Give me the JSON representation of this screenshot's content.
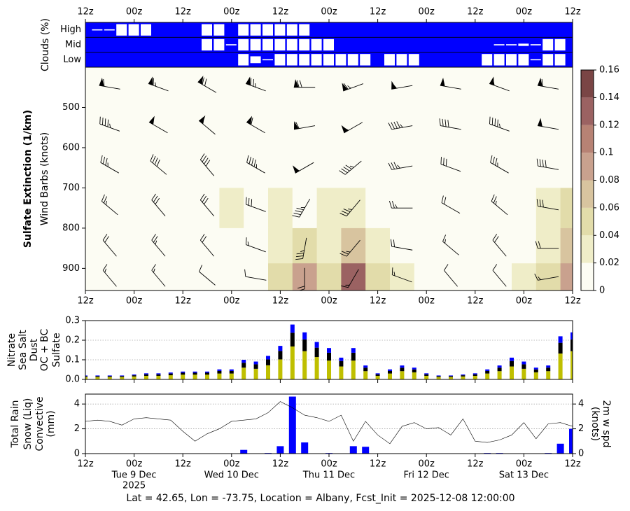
{
  "time_axis": {
    "xlim": [
      0,
      120
    ],
    "xticks": [
      {
        "value": 0,
        "label": "12z"
      },
      {
        "value": 12,
        "label": "00z"
      },
      {
        "value": 24,
        "label": "12z"
      },
      {
        "value": 36,
        "label": "00z"
      },
      {
        "value": 48,
        "label": "12z"
      },
      {
        "value": 60,
        "label": "00z"
      },
      {
        "value": 72,
        "label": "12z"
      },
      {
        "value": 84,
        "label": "00z"
      },
      {
        "value": 96,
        "label": "12z"
      },
      {
        "value": 108,
        "label": "00z"
      },
      {
        "value": 120,
        "label": "12z"
      }
    ],
    "date_labels": [
      {
        "value": 12,
        "label": "Tue 9 Dec"
      },
      {
        "value": 36,
        "label": "Wed 10 Dec"
      },
      {
        "value": 60,
        "label": "Thu 11 Dec"
      },
      {
        "value": 84,
        "label": "Fri 12 Dec"
      },
      {
        "value": 108,
        "label": "Sat 13 Dec"
      }
    ],
    "year_label": {
      "value": 12,
      "label": "2025"
    }
  },
  "footer": "Lat = 42.65, Lon = -73.75, Location = Albany, Fcst_Init = 2025-12-08 12:00:00",
  "chart_data": [
    {
      "type": "cloud_cover",
      "ylabel": "Clouds (%)",
      "x": [
        0,
        3,
        6,
        9,
        12,
        15,
        18,
        21,
        24,
        27,
        30,
        33,
        36,
        39,
        42,
        45,
        48,
        51,
        54,
        57,
        60,
        63,
        66,
        69,
        72,
        75,
        78,
        81,
        84,
        87,
        90,
        93,
        96,
        99,
        102,
        105,
        108,
        111,
        114,
        117,
        120
      ],
      "rows": [
        {
          "name": "High",
          "values": [
            0,
            10,
            10,
            100,
            100,
            100,
            0,
            0,
            0,
            0,
            100,
            100,
            0,
            100,
            100,
            100,
            100,
            100,
            100,
            0,
            0,
            0,
            0,
            0,
            0,
            0,
            0,
            0,
            0,
            0,
            0,
            0,
            0,
            0,
            0,
            0,
            0,
            0,
            0,
            0,
            0
          ]
        },
        {
          "name": "Mid",
          "values": [
            0,
            0,
            0,
            0,
            0,
            0,
            0,
            0,
            0,
            0,
            100,
            100,
            10,
            100,
            100,
            100,
            100,
            100,
            100,
            100,
            100,
            0,
            0,
            0,
            0,
            0,
            0,
            0,
            0,
            0,
            0,
            0,
            0,
            0,
            10,
            10,
            20,
            10,
            100,
            100,
            0
          ]
        },
        {
          "name": "Low",
          "values": [
            0,
            0,
            0,
            0,
            0,
            0,
            0,
            0,
            0,
            0,
            0,
            0,
            0,
            100,
            60,
            10,
            100,
            100,
            100,
            100,
            100,
            100,
            100,
            100,
            0,
            100,
            100,
            100,
            0,
            0,
            0,
            0,
            0,
            100,
            100,
            100,
            100,
            10,
            100,
            100,
            0
          ]
        }
      ]
    },
    {
      "type": "contour_barbs",
      "ylabel": "Sulfate Extinction (1/km)",
      "ylabel2": "Wind Barbs (knots)",
      "ylim": [
        400,
        955
      ],
      "yticks": [
        500,
        600,
        700,
        800,
        900
      ],
      "extinction": {
        "x": [
          0,
          6,
          12,
          18,
          24,
          30,
          36,
          42,
          48,
          54,
          60,
          66,
          72,
          78,
          84,
          90,
          96,
          102,
          108,
          114,
          120
        ],
        "levels": [
          450,
          550,
          650,
          750,
          850,
          925
        ],
        "values": [
          [
            0.01,
            0.01,
            0.01,
            0.01,
            0.01,
            0.01,
            0.01,
            0.01,
            0.01,
            0.01,
            0.01,
            0.01,
            0.01,
            0.01,
            0.01,
            0.01,
            0.01,
            0.01,
            0.01,
            0.01,
            0.01
          ],
          [
            0.01,
            0.01,
            0.01,
            0.01,
            0.01,
            0.01,
            0.01,
            0.01,
            0.01,
            0.01,
            0.01,
            0.01,
            0.01,
            0.01,
            0.01,
            0.01,
            0.01,
            0.01,
            0.01,
            0.01,
            0.01
          ],
          [
            0.01,
            0.01,
            0.01,
            0.01,
            0.01,
            0.01,
            0.01,
            0.01,
            0.01,
            0.01,
            0.01,
            0.01,
            0.01,
            0.01,
            0.01,
            0.01,
            0.01,
            0.01,
            0.01,
            0.01,
            0.015
          ],
          [
            0.01,
            0.01,
            0.01,
            0.01,
            0.01,
            0.01,
            0.025,
            0.01,
            0.03,
            0.01,
            0.025,
            0.03,
            0.01,
            0.01,
            0.01,
            0.01,
            0.01,
            0.01,
            0.01,
            0.025,
            0.05
          ],
          [
            0.01,
            0.01,
            0.01,
            0.01,
            0.01,
            0.01,
            0.015,
            0.01,
            0.03,
            0.05,
            0.03,
            0.07,
            0.03,
            0.01,
            0.01,
            0.01,
            0.01,
            0.01,
            0.015,
            0.03,
            0.07
          ],
          [
            0.01,
            0.01,
            0.01,
            0.01,
            0.01,
            0.01,
            0.01,
            0.01,
            0.05,
            0.08,
            0.04,
            0.13,
            0.05,
            0.025,
            0.01,
            0.01,
            0.01,
            0.01,
            0.02,
            0.05,
            0.09
          ]
        ]
      },
      "winds": {
        "x": [
          6,
          18,
          30,
          42,
          54,
          66,
          78,
          90,
          102,
          114
        ],
        "levels": [
          450,
          550,
          650,
          750,
          850,
          925
        ],
        "direction": [
          [
            280,
            290,
            300,
            290,
            270,
            250,
            260,
            280,
            290,
            280
          ],
          [
            290,
            300,
            310,
            300,
            260,
            240,
            260,
            280,
            290,
            280
          ],
          [
            300,
            310,
            320,
            300,
            240,
            230,
            260,
            290,
            300,
            280
          ],
          [
            310,
            320,
            320,
            290,
            210,
            220,
            270,
            300,
            310,
            280
          ],
          [
            320,
            320,
            320,
            290,
            190,
            220,
            280,
            310,
            320,
            270
          ],
          [
            320,
            320,
            310,
            280,
            180,
            210,
            290,
            320,
            320,
            260
          ]
        ],
        "speed": [
          [
            60,
            65,
            70,
            75,
            70,
            65,
            55,
            50,
            55,
            60
          ],
          [
            45,
            50,
            55,
            60,
            60,
            55,
            45,
            40,
            45,
            50
          ],
          [
            35,
            40,
            40,
            45,
            50,
            45,
            35,
            30,
            35,
            40
          ],
          [
            25,
            30,
            30,
            30,
            45,
            35,
            25,
            20,
            25,
            30
          ],
          [
            20,
            25,
            20,
            15,
            35,
            25,
            20,
            15,
            20,
            20
          ],
          [
            15,
            15,
            10,
            10,
            20,
            15,
            15,
            10,
            10,
            15
          ]
        ]
      },
      "colorbar": {
        "ticks": [
          0,
          0.02,
          0.04,
          0.06,
          0.08,
          0.1,
          0.12,
          0.14,
          0.16
        ],
        "colors": [
          "#fcfcf3",
          "#efedc8",
          "#e2dcaa",
          "#d8c49f",
          "#c9a18e",
          "#b78274",
          "#9b6262",
          "#7a4545"
        ]
      }
    },
    {
      "type": "stacked_bar",
      "ylim": [
        0,
        0.3
      ],
      "yticks": [
        {
          "value": 0,
          "label": "0.0"
        },
        0.1,
        0.2,
        0.3
      ],
      "grid": true,
      "x": [
        0,
        3,
        6,
        9,
        12,
        15,
        18,
        21,
        24,
        27,
        30,
        33,
        36,
        39,
        42,
        45,
        48,
        51,
        54,
        57,
        60,
        63,
        66,
        69,
        72,
        75,
        78,
        81,
        84,
        87,
        90,
        93,
        96,
        99,
        102,
        105,
        108,
        111,
        114,
        117,
        120
      ],
      "series": [
        {
          "name": "Sulfate",
          "color": "#bfbf00",
          "values": [
            0.012,
            0.012,
            0.012,
            0.012,
            0.015,
            0.018,
            0.018,
            0.021,
            0.024,
            0.024,
            0.024,
            0.03,
            0.03,
            0.06,
            0.054,
            0.072,
            0.102,
            0.168,
            0.144,
            0.114,
            0.096,
            0.066,
            0.096,
            0.042,
            0.018,
            0.03,
            0.042,
            0.036,
            0.018,
            0.012,
            0.012,
            0.015,
            0.018,
            0.03,
            0.042,
            0.066,
            0.054,
            0.036,
            0.042,
            0.132,
            0.144
          ]
        },
        {
          "name": "OC + BC",
          "color": "#000000",
          "values": [
            0.005,
            0.005,
            0.005,
            0.005,
            0.006,
            0.008,
            0.008,
            0.009,
            0.01,
            0.01,
            0.01,
            0.013,
            0.013,
            0.025,
            0.023,
            0.03,
            0.043,
            0.07,
            0.06,
            0.048,
            0.04,
            0.028,
            0.04,
            0.018,
            0.008,
            0.013,
            0.018,
            0.015,
            0.008,
            0.005,
            0.005,
            0.006,
            0.008,
            0.013,
            0.018,
            0.028,
            0.023,
            0.015,
            0.018,
            0.055,
            0.06
          ]
        },
        {
          "name": "Dust",
          "color": "#ff0000",
          "values": [
            0,
            0,
            0,
            0,
            0,
            0,
            0,
            0,
            0,
            0,
            0,
            0,
            0,
            0,
            0,
            0,
            0,
            0,
            0,
            0,
            0,
            0,
            0,
            0,
            0,
            0,
            0,
            0,
            0,
            0,
            0,
            0,
            0,
            0,
            0,
            0,
            0,
            0,
            0,
            0,
            0
          ]
        },
        {
          "name": "Sea Salt",
          "color": "#0000ff",
          "values": [
            0.003,
            0.003,
            0.003,
            0.003,
            0.004,
            0.005,
            0.005,
            0.005,
            0.006,
            0.006,
            0.006,
            0.008,
            0.008,
            0.015,
            0.014,
            0.018,
            0.026,
            0.042,
            0.036,
            0.029,
            0.024,
            0.017,
            0.024,
            0.011,
            0.005,
            0.008,
            0.011,
            0.009,
            0.005,
            0.003,
            0.003,
            0.004,
            0.005,
            0.008,
            0.011,
            0.017,
            0.014,
            0.009,
            0.011,
            0.033,
            0.036
          ]
        },
        {
          "name": "Nitrate",
          "color": "#008000",
          "values": [
            0,
            0,
            0,
            0,
            0,
            0,
            0,
            0,
            0,
            0,
            0,
            0,
            0,
            0,
            0,
            0,
            0,
            0,
            0,
            0,
            0,
            0,
            0,
            0,
            0,
            0,
            0,
            0,
            0,
            0,
            0,
            0,
            0,
            0,
            0,
            0,
            0,
            0,
            0,
            0,
            0
          ]
        }
      ]
    },
    {
      "type": "bar_line",
      "ylabel": "(mm)",
      "y2label": "(knots)",
      "ylim": [
        0,
        4.8
      ],
      "yticks": [
        0,
        2,
        4
      ],
      "y2lim": [
        0,
        4.8
      ],
      "y2ticks": [
        0,
        2,
        4
      ],
      "grid": true,
      "x": [
        0,
        3,
        6,
        9,
        12,
        15,
        18,
        21,
        24,
        27,
        30,
        33,
        36,
        39,
        42,
        45,
        48,
        51,
        54,
        57,
        60,
        63,
        66,
        69,
        72,
        75,
        78,
        81,
        84,
        87,
        90,
        93,
        96,
        99,
        102,
        105,
        108,
        111,
        114,
        117,
        120
      ],
      "series": [
        {
          "name": "Total Rain",
          "color": "#008000",
          "values": [
            0,
            0,
            0,
            0,
            0,
            0,
            0,
            0,
            0,
            0,
            0,
            0,
            0,
            0,
            0,
            0,
            0,
            0,
            0,
            0,
            0,
            0,
            0,
            0,
            0,
            0,
            0,
            0,
            0,
            0,
            0,
            0,
            0,
            0,
            0,
            0,
            0,
            0,
            0,
            0,
            0
          ]
        },
        {
          "name": "Snow (Liq)",
          "color": "#0000ff",
          "values": [
            0,
            0,
            0,
            0,
            0,
            0,
            0,
            0,
            0,
            0,
            0,
            0,
            0,
            0.3,
            0,
            0.05,
            0.6,
            4.6,
            0.9,
            0,
            0.05,
            0,
            0.6,
            0.55,
            0,
            0,
            0,
            0,
            0,
            0,
            0,
            0,
            0,
            0.05,
            0.05,
            0,
            0,
            0,
            0.05,
            0.8,
            2.0
          ]
        },
        {
          "name": "Convective",
          "color": "#ff0000",
          "values": [
            0,
            0,
            0,
            0,
            0,
            0,
            0,
            0,
            0,
            0,
            0,
            0,
            0,
            0,
            0,
            0,
            0,
            0,
            0,
            0,
            0,
            0,
            0,
            0,
            0,
            0,
            0,
            0,
            0,
            0,
            0,
            0,
            0,
            0,
            0,
            0,
            0,
            0,
            0,
            0,
            0
          ]
        },
        {
          "name": "2m w spd",
          "color": "#000000",
          "axis": "y2",
          "values": [
            2.6,
            2.7,
            2.6,
            2.3,
            2.8,
            2.9,
            2.8,
            2.7,
            1.8,
            1.0,
            1.6,
            2.0,
            2.6,
            2.7,
            2.8,
            3.3,
            4.2,
            3.7,
            3.1,
            2.9,
            2.6,
            3.1,
            1.0,
            2.6,
            1.5,
            0.8,
            2.2,
            2.5,
            2.0,
            2.1,
            1.5,
            2.8,
            1.0,
            0.9,
            1.1,
            1.5,
            2.5,
            1.2,
            2.4,
            2.5,
            2.2
          ]
        }
      ]
    }
  ]
}
